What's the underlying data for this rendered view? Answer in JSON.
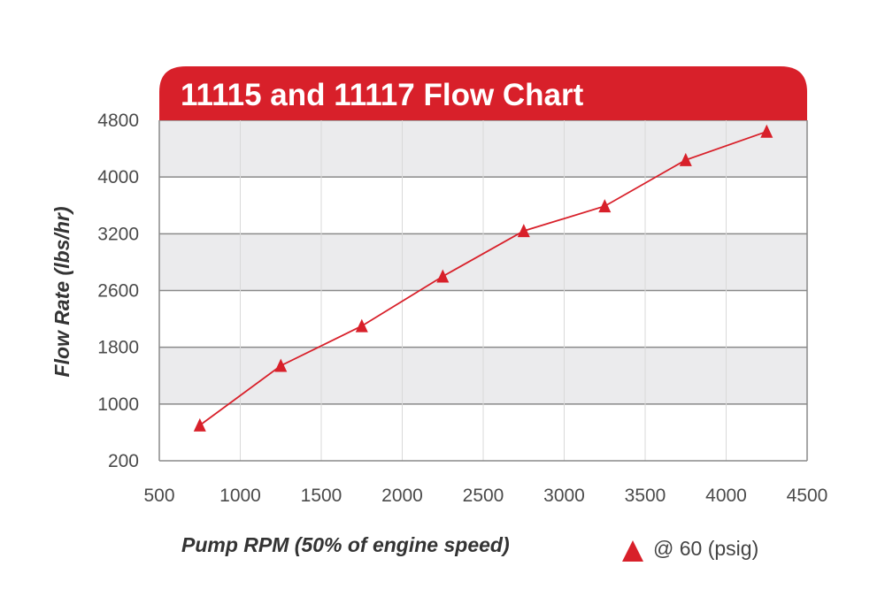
{
  "chart_data": {
    "type": "line",
    "title": "11115 and 11117 Flow Chart",
    "xlabel": "Pump RPM (50% of engine speed)",
    "ylabel": "Flow Rate (lbs/hr)",
    "x_ticks": [
      "500",
      "1000",
      "1500",
      "2000",
      "2500",
      "3000",
      "3500",
      "4000",
      "4500"
    ],
    "y_ticks": [
      "200",
      "1000",
      "1800",
      "2600",
      "3200",
      "4000",
      "4800"
    ],
    "xlim": [
      500,
      4500
    ],
    "grid": true,
    "legend_position": "bottom-right",
    "series": [
      {
        "name": "@ 60 (psig)",
        "marker": "triangle",
        "color": "#d8202a",
        "x": [
          750,
          1250,
          1750,
          2250,
          2750,
          3250,
          3750,
          4250
        ],
        "y": [
          700,
          1540,
          2100,
          2750,
          3240,
          3590,
          4240,
          4640
        ]
      }
    ]
  },
  "colors": {
    "title_bar": "#d8202a",
    "band_shade": "#ebebed",
    "grid": "#8a8a8a",
    "series": "#d8202a"
  }
}
